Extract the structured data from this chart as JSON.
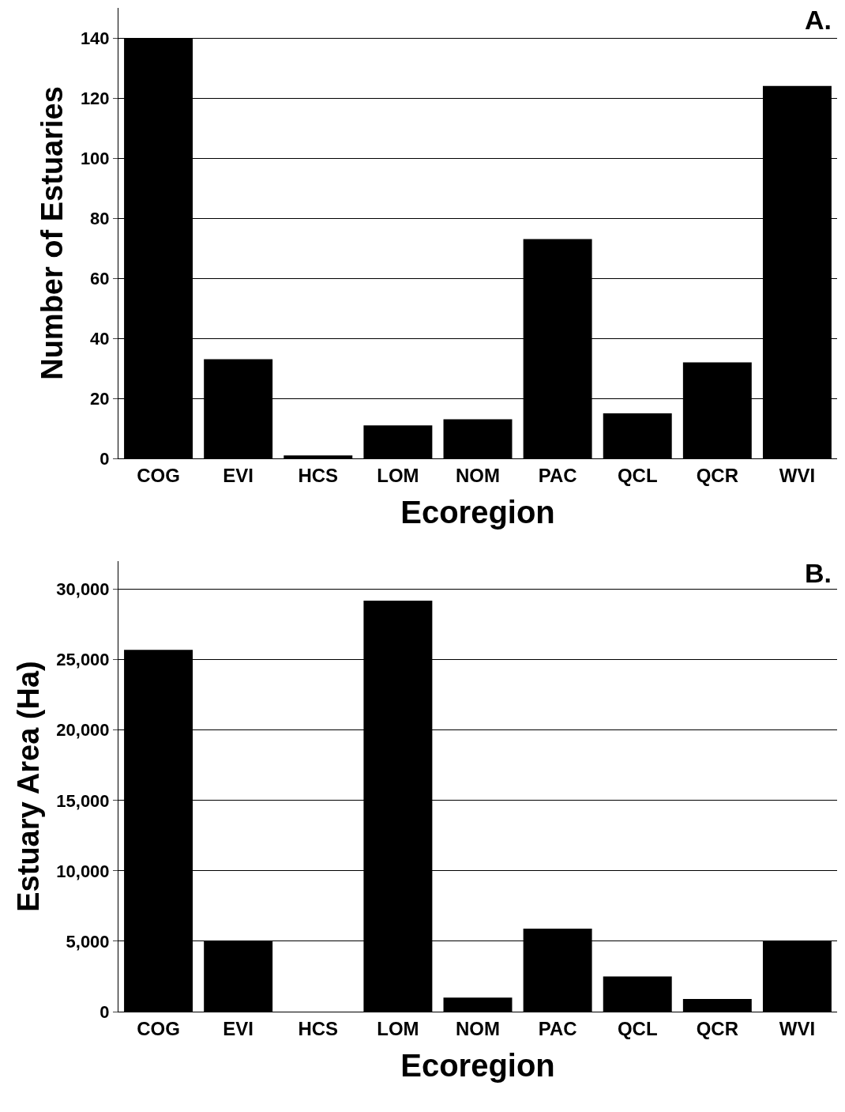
{
  "chart_data": [
    {
      "type": "bar",
      "xlabel": "Ecoregion",
      "ylabel": "Number of Estuaries",
      "annotations": [
        "A."
      ],
      "categories": [
        "COG",
        "EVI",
        "HCS",
        "LOM",
        "NOM",
        "PAC",
        "QCL",
        "QCR",
        "WVI"
      ],
      "series": [
        {
          "color": "#000000",
          "values": [
            140,
            33,
            1,
            11,
            13,
            73,
            15,
            32,
            124
          ]
        }
      ],
      "ylim": [
        0,
        150
      ],
      "yticks": [
        0,
        20,
        40,
        60,
        80,
        100,
        120,
        140
      ],
      "grid": "y"
    },
    {
      "type": "bar",
      "xlabel": "Ecoregion",
      "ylabel": "Estuary Area (Ha)",
      "annotations": [
        "B."
      ],
      "categories": [
        "COG",
        "EVI",
        "HCS",
        "LOM",
        "NOM",
        "PAC",
        "QCL",
        "QCR",
        "WVI"
      ],
      "series": [
        {
          "color": "#000000",
          "values": [
            25700,
            5000,
            0,
            29200,
            1000,
            5900,
            2500,
            900,
            5000
          ]
        }
      ],
      "ylim": [
        0,
        32000
      ],
      "yticks": [
        0,
        {
          "value": 5000,
          "label": "5,000"
        },
        {
          "value": 10000,
          "label": "10,000"
        },
        {
          "value": 15000,
          "label": "15,000"
        },
        {
          "value": 20000,
          "label": "20,000"
        },
        {
          "value": 25000,
          "label": "25,000"
        },
        {
          "value": 30000,
          "label": "30,000"
        }
      ],
      "grid": "y"
    }
  ]
}
